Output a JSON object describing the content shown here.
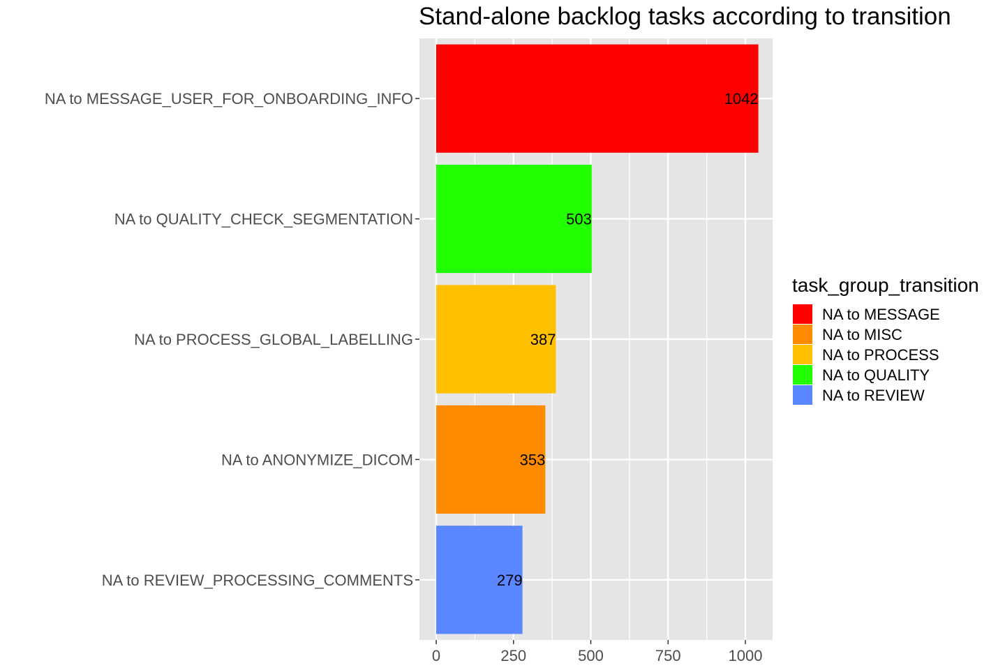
{
  "chart_data": {
    "type": "bar",
    "orientation": "horizontal",
    "title": "Stand-alone backlog tasks according to transition",
    "xlabel": "",
    "ylabel": "",
    "xlim": [
      0,
      1083
    ],
    "x_ticks": [
      0,
      250,
      500,
      750,
      1000
    ],
    "grid": true,
    "legend_position": "right",
    "categories": [
      "NA to  MESSAGE_USER_FOR_ONBOARDING_INFO",
      "NA to  QUALITY_CHECK_SEGMENTATION",
      "NA to  PROCESS_GLOBAL_LABELLING",
      "NA to  ANONYMIZE_DICOM",
      "NA to  REVIEW_PROCESSING_COMMENTS"
    ],
    "values": [
      1042,
      503,
      387,
      353,
      279
    ],
    "bar_groups": [
      "NA to  MESSAGE",
      "NA to  QUALITY",
      "NA to  PROCESS",
      "NA to  MISC",
      "NA to  REVIEW"
    ],
    "legend": {
      "title": "task_group_transition",
      "entries": [
        {
          "label": "NA to  MESSAGE",
          "color": "#FF0000"
        },
        {
          "label": "NA to  MISC",
          "color": "#FF8C00"
        },
        {
          "label": "NA to  PROCESS",
          "color": "#FFC000"
        },
        {
          "label": "NA to  QUALITY",
          "color": "#22FF00"
        },
        {
          "label": "NA to  REVIEW",
          "color": "#5A86FF"
        }
      ]
    },
    "colors": {
      "panel_background": "#E5E5E5",
      "grid_line": "#FFFFFF"
    }
  }
}
